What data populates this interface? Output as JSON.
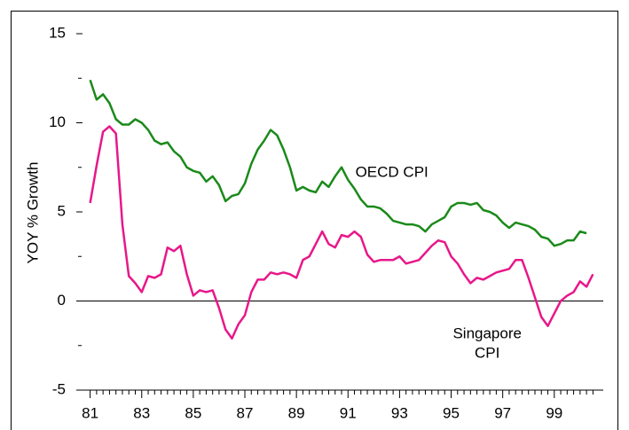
{
  "chart_data": {
    "type": "line",
    "ylabel": "YOY % Growth",
    "x": [
      81,
      81.25,
      81.5,
      81.75,
      82,
      82.25,
      82.5,
      82.75,
      83,
      83.25,
      83.5,
      83.75,
      84,
      84.25,
      84.5,
      84.75,
      85,
      85.25,
      85.5,
      85.75,
      86,
      86.25,
      86.5,
      86.75,
      87,
      87.25,
      87.5,
      87.75,
      88,
      88.25,
      88.5,
      88.75,
      89,
      89.25,
      89.5,
      89.75,
      90,
      90.25,
      90.5,
      90.75,
      91,
      91.25,
      91.5,
      91.75,
      92,
      92.25,
      92.5,
      92.75,
      93,
      93.25,
      93.5,
      93.75,
      94,
      94.25,
      94.5,
      94.75,
      95,
      95.25,
      95.5,
      95.75,
      96,
      96.25,
      96.5,
      96.75,
      97,
      97.25,
      97.5,
      97.75,
      98,
      98.25,
      98.5,
      98.75,
      99,
      99.25,
      99.5,
      99.75,
      100,
      100.25,
      100.5
    ],
    "series": [
      {
        "name": "OECD CPI",
        "color": "#1a8a1a",
        "values": [
          12.4,
          11.3,
          11.6,
          11.1,
          10.2,
          9.9,
          9.9,
          10.2,
          10.0,
          9.6,
          9.0,
          8.8,
          8.9,
          8.4,
          8.1,
          7.5,
          7.3,
          7.2,
          6.7,
          7.0,
          6.5,
          5.6,
          5.9,
          6.0,
          6.6,
          7.7,
          8.5,
          9.0,
          9.6,
          9.3,
          8.5,
          7.5,
          6.2,
          6.4,
          6.2,
          6.1,
          6.7,
          6.4,
          7.0,
          7.5,
          6.8,
          6.3,
          5.7,
          5.3,
          5.3,
          5.2,
          4.9,
          4.5,
          4.4,
          4.3,
          4.3,
          4.2,
          3.9,
          4.3,
          4.5,
          4.7,
          5.3,
          5.5,
          5.5,
          5.4,
          5.5,
          5.1,
          5.0,
          4.8,
          4.4,
          4.1,
          4.4,
          4.3,
          4.2,
          4.0,
          3.6,
          3.5,
          3.1,
          3.2,
          3.4,
          3.4,
          3.9,
          3.8,
          null
        ]
      },
      {
        "name": "Singapore CPI",
        "color": "#e8178a",
        "values": [
          5.5,
          7.6,
          9.5,
          9.8,
          9.4,
          4.3,
          1.4,
          1.0,
          0.5,
          1.4,
          1.3,
          1.5,
          3.0,
          2.8,
          3.1,
          1.5,
          0.3,
          0.6,
          0.5,
          0.6,
          -0.4,
          -1.6,
          -2.1,
          -1.3,
          -0.8,
          0.5,
          1.2,
          1.2,
          1.6,
          1.5,
          1.6,
          1.5,
          1.3,
          2.3,
          2.5,
          3.2,
          3.9,
          3.2,
          3.0,
          3.7,
          3.6,
          3.9,
          3.6,
          2.6,
          2.2,
          2.3,
          2.3,
          2.3,
          2.5,
          2.1,
          2.2,
          2.3,
          2.7,
          3.1,
          3.4,
          3.3,
          2.5,
          2.1,
          1.5,
          1.0,
          1.3,
          1.2,
          1.4,
          1.6,
          1.7,
          1.8,
          2.3,
          2.3,
          1.3,
          0.2,
          -0.9,
          -1.4,
          -0.7,
          0.0,
          0.3,
          0.5,
          1.1,
          0.8,
          1.5
        ]
      }
    ],
    "annotations": [
      {
        "text": "OECD CPI",
        "x": 92.7,
        "y": 7.2,
        "color": "#1a8a1a"
      },
      {
        "text": "Singapore\nCPI",
        "x": 96.4,
        "y": -1.9,
        "color": "#e8178a"
      }
    ],
    "xlim": [
      80.6,
      100.9
    ],
    "ylim": [
      -5,
      15
    ],
    "xticks": [
      81,
      83,
      85,
      87,
      89,
      91,
      93,
      95,
      97,
      99
    ],
    "xminorticks": [
      81.25,
      81.5,
      81.75,
      82,
      82.25,
      82.5,
      82.75,
      83.25,
      83.5,
      83.75,
      84,
      84.25,
      84.5,
      84.75,
      85.25,
      85.5,
      85.75,
      86,
      86.25,
      86.5,
      86.75,
      87.25,
      87.5,
      87.75,
      88,
      88.25,
      88.5,
      88.75,
      89.25,
      89.5,
      89.75,
      90,
      90.25,
      90.5,
      90.75,
      91.25,
      91.5,
      91.75,
      92,
      92.25,
      92.5,
      92.75,
      93.25,
      93.5,
      93.75,
      94,
      94.25,
      94.5,
      94.75,
      95.25,
      95.5,
      95.75,
      96,
      96.25,
      96.5,
      96.75,
      97.25,
      97.5,
      97.75,
      98,
      98.25,
      98.5,
      98.75,
      99.25,
      99.5,
      99.75,
      100,
      100.25,
      100.5
    ],
    "yticks": [
      -5,
      0,
      5,
      10,
      15
    ],
    "yminorticks": [
      -2.5,
      2.5,
      7.5,
      12.5
    ],
    "zero_line": true
  }
}
